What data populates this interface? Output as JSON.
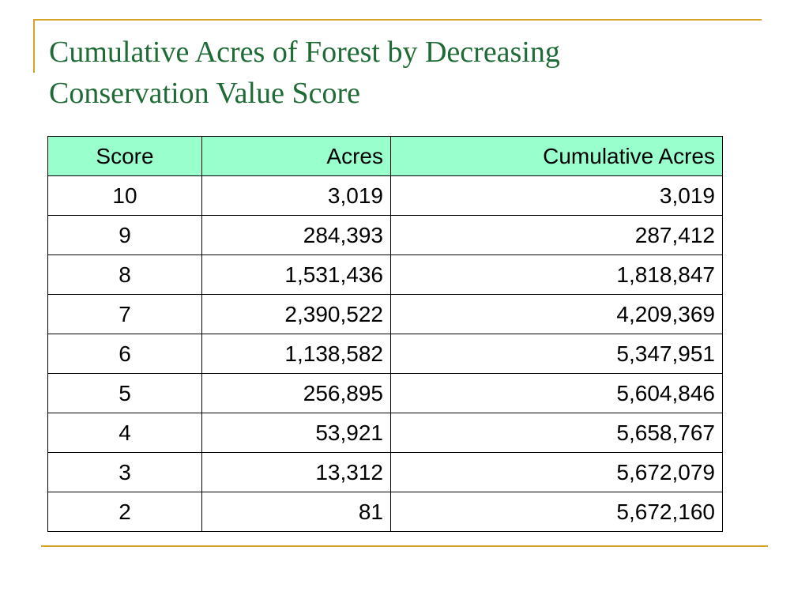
{
  "title": {
    "line1": "Cumulative Acres of Forest by Decreasing",
    "line2": "Conservation Value Score"
  },
  "table": {
    "headers": [
      "Score",
      "Acres",
      "Cumulative Acres"
    ],
    "rows": [
      [
        "10",
        "3,019",
        "3,019"
      ],
      [
        "9",
        "284,393",
        "287,412"
      ],
      [
        "8",
        "1,531,436",
        "1,818,847"
      ],
      [
        "7",
        "2,390,522",
        "4,209,369"
      ],
      [
        "6",
        "1,138,582",
        "5,347,951"
      ],
      [
        "5",
        "256,895",
        "5,604,846"
      ],
      [
        "4",
        "53,921",
        "5,658,767"
      ],
      [
        "3",
        "13,312",
        "5,672,079"
      ],
      [
        "2",
        "81",
        "5,672,160"
      ]
    ]
  },
  "colors": {
    "title": "#1f6b35",
    "accent_rule": "#d4a52a",
    "header_fill": "#99ffcc"
  }
}
